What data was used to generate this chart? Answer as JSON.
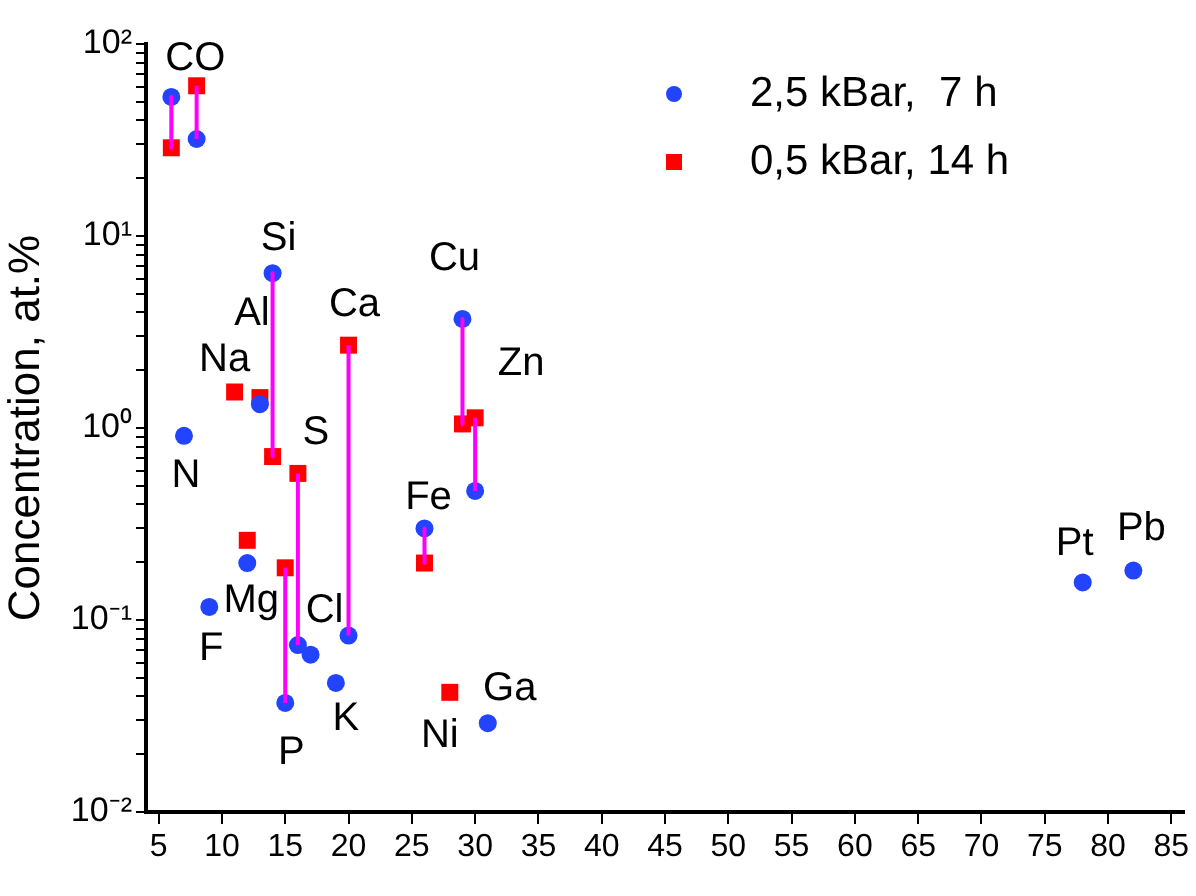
{
  "chart_data": {
    "type": "scatter",
    "ylabel": "Concentration, at.%",
    "log": "y",
    "grid": false,
    "legend": "top right",
    "xlim": [
      4,
      86
    ],
    "ylim": [
      0.01,
      100
    ],
    "xticks": [
      5,
      10,
      15,
      20,
      25,
      30,
      35,
      40,
      45,
      50,
      55,
      60,
      65,
      70,
      75,
      80,
      85
    ],
    "yticks": [
      {
        "value": 0.01,
        "label": "10⁻²"
      },
      {
        "value": 0.02,
        "label": null
      },
      {
        "value": 0.03,
        "label": null
      },
      {
        "value": 0.04,
        "label": null
      },
      {
        "value": 0.05,
        "label": null
      },
      {
        "value": 0.06,
        "label": null
      },
      {
        "value": 0.07,
        "label": null
      },
      {
        "value": 0.08,
        "label": null
      },
      {
        "value": 0.09,
        "label": null
      },
      {
        "value": 0.1,
        "label": "10⁻¹"
      },
      {
        "value": 0.2,
        "label": null
      },
      {
        "value": 0.3,
        "label": null
      },
      {
        "value": 0.4,
        "label": null
      },
      {
        "value": 0.5,
        "label": null
      },
      {
        "value": 0.6,
        "label": null
      },
      {
        "value": 0.7,
        "label": null
      },
      {
        "value": 0.8,
        "label": null
      },
      {
        "value": 0.9,
        "label": null
      },
      {
        "value": 1,
        "label": "10⁰"
      },
      {
        "value": 2,
        "label": null
      },
      {
        "value": 3,
        "label": null
      },
      {
        "value": 4,
        "label": null
      },
      {
        "value": 5,
        "label": null
      },
      {
        "value": 6,
        "label": null
      },
      {
        "value": 7,
        "label": null
      },
      {
        "value": 8,
        "label": null
      },
      {
        "value": 9,
        "label": null
      },
      {
        "value": 10,
        "label": "10¹"
      },
      {
        "value": 20,
        "label": null
      },
      {
        "value": 30,
        "label": null
      },
      {
        "value": 40,
        "label": null
      },
      {
        "value": 50,
        "label": null
      },
      {
        "value": 60,
        "label": null
      },
      {
        "value": 70,
        "label": null
      },
      {
        "value": 80,
        "label": null
      },
      {
        "value": 90,
        "label": null
      },
      {
        "value": 100,
        "label": "10²"
      }
    ],
    "series": [
      {
        "type": "line",
        "color": "#ff00ff",
        "marker": "none",
        "line_style": "solid",
        "x": [
          6,
          6,
          null,
          8,
          8,
          null,
          14,
          14,
          null,
          15,
          15,
          null,
          16,
          16,
          null,
          20,
          20,
          null,
          26,
          26,
          null,
          29,
          29,
          null,
          30,
          30
        ],
        "values": [
          53,
          28.8,
          null,
          32,
          60.6,
          null,
          6.4,
          0.71,
          null,
          0.037,
          0.187,
          null,
          0.074,
          0.58,
          null,
          0.083,
          2.7,
          null,
          0.3,
          0.198,
          null,
          3.7,
          1.05,
          null,
          0.47,
          1.13
        ]
      },
      {
        "name": "2,5 kBar,  7 h",
        "color": "#2244ff",
        "marker": "circle",
        "x": [
          6,
          8,
          14,
          13,
          29,
          7,
          30,
          26,
          12,
          9,
          20,
          16,
          17,
          19,
          15,
          31,
          78,
          82
        ],
        "values": [
          53,
          32,
          6.4,
          1.33,
          3.7,
          0.91,
          0.47,
          0.3,
          0.198,
          0.117,
          0.083,
          0.074,
          0.066,
          0.047,
          0.037,
          0.029,
          0.157,
          0.181
        ]
      },
      {
        "name": "0,5 kBar, 14 h",
        "color": "#ff0000",
        "marker": "square",
        "x": [
          6,
          8,
          11,
          13,
          20,
          29,
          30,
          14,
          16,
          12,
          26,
          15,
          28
        ],
        "values": [
          28.8,
          60.6,
          1.54,
          1.44,
          2.7,
          1.05,
          1.13,
          0.71,
          0.58,
          0.26,
          0.198,
          0.187,
          0.042
        ]
      }
    ],
    "annotations": [
      {
        "text": "CO",
        "x": 6,
        "y": 53
      },
      {
        "text": "Si",
        "x": 14,
        "y": 6.4
      },
      {
        "text": "Al",
        "x": 13,
        "y": 1.44
      },
      {
        "text": "Na",
        "x": 11,
        "y": 1.54
      },
      {
        "text": "Ca",
        "x": 20,
        "y": 2.7
      },
      {
        "text": "Cu",
        "x": 29,
        "y": 3.7
      },
      {
        "text": "Zn",
        "x": 30,
        "y": 1.13
      },
      {
        "text": "S",
        "x": 16,
        "y": 0.58
      },
      {
        "text": "N",
        "x": 7,
        "y": 0.91
      },
      {
        "text": "Fe",
        "x": 26,
        "y": 0.3
      },
      {
        "text": "Mg",
        "x": 12,
        "y": 0.198
      },
      {
        "text": "F",
        "x": 9,
        "y": 0.117
      },
      {
        "text": "Cl",
        "x": 17,
        "y": 0.066
      },
      {
        "text": "K",
        "x": 19,
        "y": 0.047
      },
      {
        "text": "P",
        "x": 15,
        "y": 0.037
      },
      {
        "text": "Ni",
        "x": 28,
        "y": 0.042
      },
      {
        "text": "Ga",
        "x": 31,
        "y": 0.029
      },
      {
        "text": "Pt",
        "x": 78,
        "y": 0.157
      },
      {
        "text": "Pb",
        "x": 82,
        "y": 0.181
      }
    ]
  }
}
